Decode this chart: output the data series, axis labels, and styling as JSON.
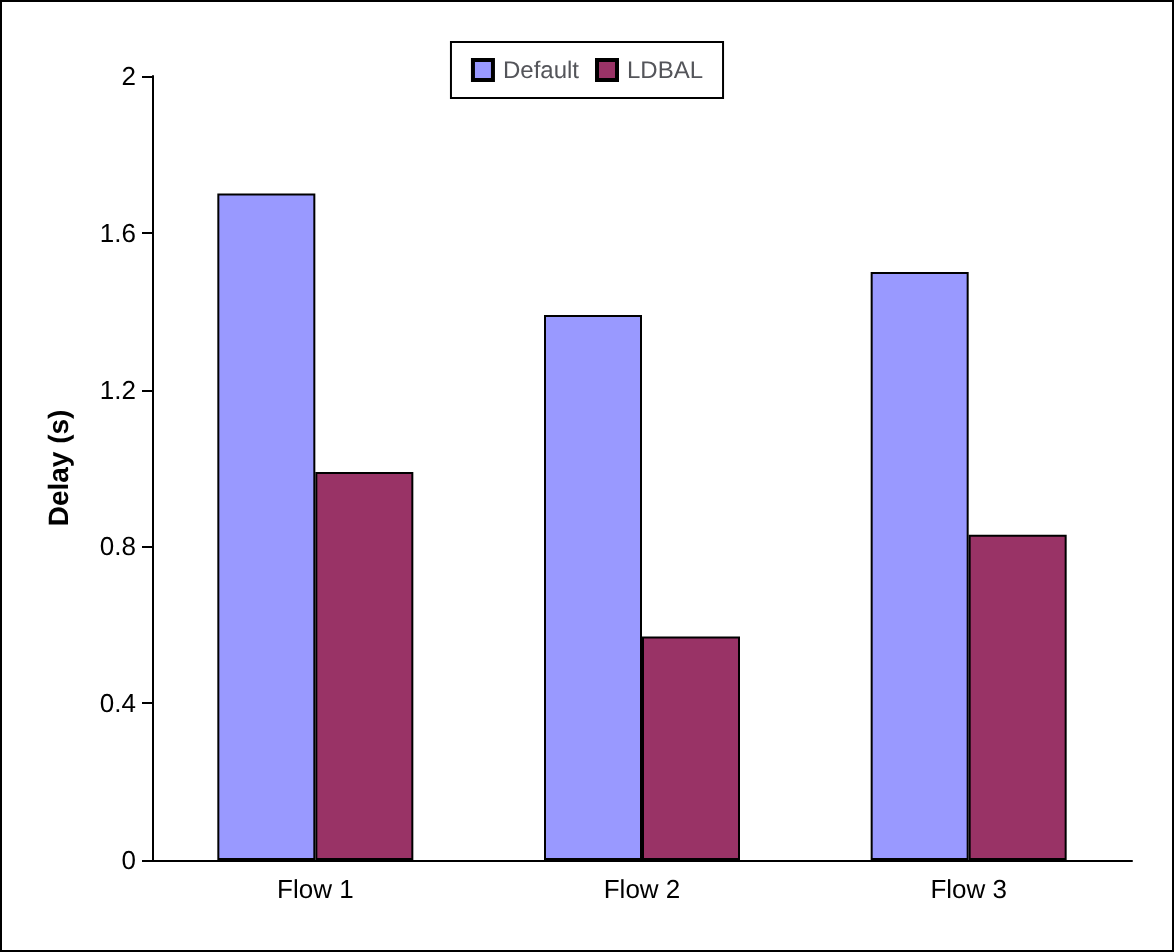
{
  "chart_data": {
    "type": "bar",
    "ylabel": "Delay (s)",
    "categories": [
      "Flow 1",
      "Flow 2",
      "Flow 3"
    ],
    "series": [
      {
        "name": "Default",
        "color": "#9999ff",
        "values": [
          1.7,
          1.39,
          1.5
        ]
      },
      {
        "name": "LDBAL",
        "color": "#993366",
        "values": [
          0.99,
          0.57,
          0.83
        ]
      }
    ],
    "ylim": [
      0,
      2
    ],
    "yticks": [
      0,
      0.4,
      0.8,
      1.2,
      1.6,
      2
    ],
    "grid": false,
    "legend": "top"
  }
}
